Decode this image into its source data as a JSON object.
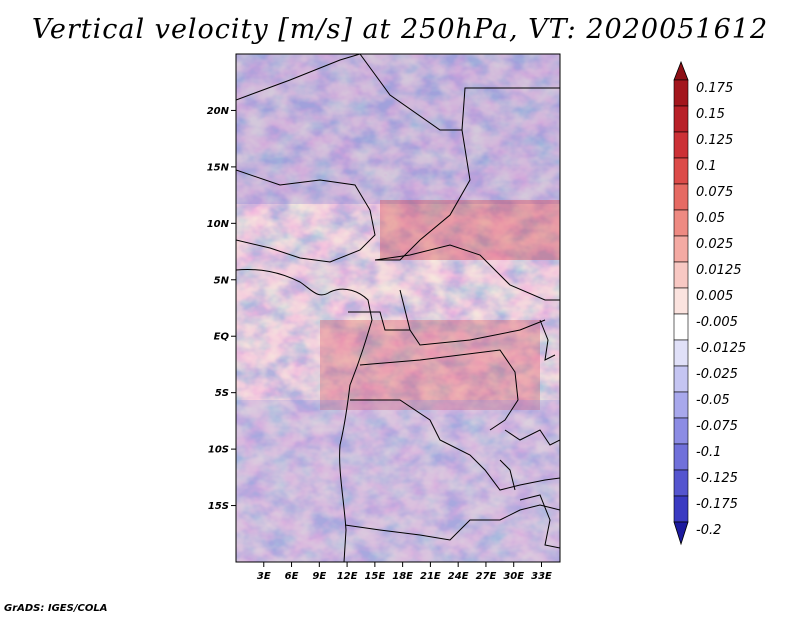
{
  "title": "Vertical velocity [m/s] at 250hPa, VT: 2020051612",
  "credit": "GrADS: IGES/COLA",
  "map": {
    "lon_range": [
      0,
      35
    ],
    "lat_range": [
      -20,
      25
    ],
    "lat_ticks": [
      {
        "value": 20,
        "label": "20N"
      },
      {
        "value": 15,
        "label": "15N"
      },
      {
        "value": 10,
        "label": "10N"
      },
      {
        "value": 5,
        "label": "5N"
      },
      {
        "value": 0,
        "label": "EQ"
      },
      {
        "value": -5,
        "label": "5S"
      },
      {
        "value": -10,
        "label": "10S"
      },
      {
        "value": -15,
        "label": "15S"
      }
    ],
    "lon_ticks": [
      {
        "value": 3,
        "label": "3E"
      },
      {
        "value": 6,
        "label": "6E"
      },
      {
        "value": 9,
        "label": "9E"
      },
      {
        "value": 12,
        "label": "12E"
      },
      {
        "value": 15,
        "label": "15E"
      },
      {
        "value": 18,
        "label": "18E"
      },
      {
        "value": 21,
        "label": "21E"
      },
      {
        "value": 24,
        "label": "24E"
      },
      {
        "value": 27,
        "label": "27E"
      },
      {
        "value": 30,
        "label": "30E"
      },
      {
        "value": 33,
        "label": "33E"
      }
    ]
  },
  "colorbar": {
    "levels": [
      {
        "label": "0.175",
        "color": "#a3161d"
      },
      {
        "label": "0.15",
        "color": "#b82028"
      },
      {
        "label": "0.125",
        "color": "#cc3136"
      },
      {
        "label": "0.1",
        "color": "#dc4b49"
      },
      {
        "label": "0.075",
        "color": "#e66a63"
      },
      {
        "label": "0.05",
        "color": "#ee8a82"
      },
      {
        "label": "0.025",
        "color": "#f4aaa3"
      },
      {
        "label": "0.0125",
        "color": "#f8c8c3"
      },
      {
        "label": "0.005",
        "color": "#fbe3df"
      },
      {
        "label": "-0.005",
        "color": "#ffffff"
      },
      {
        "label": "-0.0125",
        "color": "#e0e0f8"
      },
      {
        "label": "-0.025",
        "color": "#c5c5f2"
      },
      {
        "label": "-0.05",
        "color": "#a8a8ec"
      },
      {
        "label": "-0.075",
        "color": "#8c8ce4"
      },
      {
        "label": "-0.1",
        "color": "#7070da"
      },
      {
        "label": "-0.125",
        "color": "#5555cf"
      },
      {
        "label": "-0.175",
        "color": "#3a3ac2"
      },
      {
        "label": "-0.2",
        "color": "#2626b0"
      }
    ],
    "top_color": "#8d1016",
    "bottom_color": "#1c1a9e"
  }
}
